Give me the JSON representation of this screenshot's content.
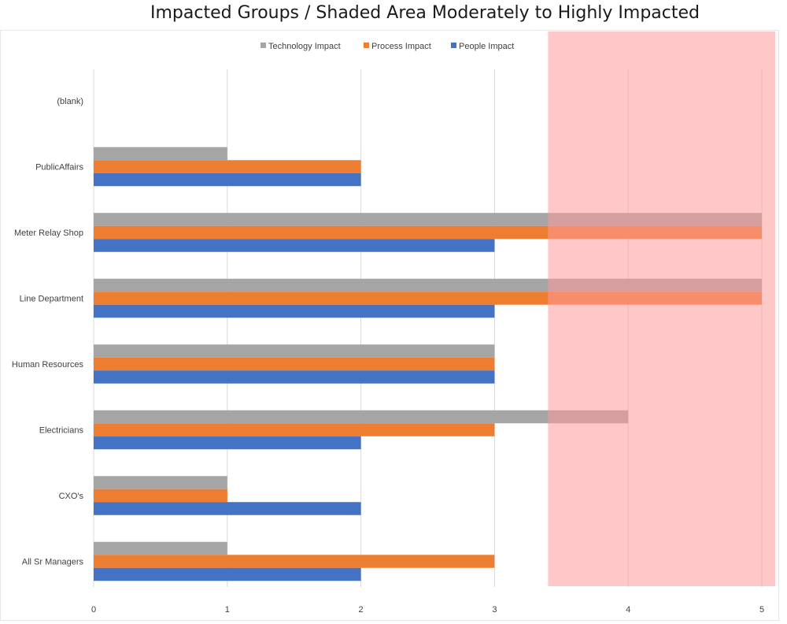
{
  "chart_data": {
    "type": "bar",
    "orientation": "horizontal",
    "title": "Impacted Groups / Shaded Area Moderately to Highly Impacted",
    "categories": [
      "(blank)",
      "PublicAffairs",
      "Meter Relay Shop",
      "Line Department",
      "Human Resources",
      "Electricians",
      "CXO's",
      "All Sr Managers"
    ],
    "series": [
      {
        "name": "Technology Impact",
        "color": "#a5a5a5",
        "values": [
          null,
          1,
          5,
          5,
          3,
          4,
          1,
          1
        ]
      },
      {
        "name": "Process Impact",
        "color": "#ed7d31",
        "values": [
          null,
          2,
          5,
          5,
          3,
          3,
          1,
          3
        ]
      },
      {
        "name": "People Impact",
        "color": "#4472c4",
        "values": [
          null,
          2,
          3,
          3,
          3,
          2,
          2,
          2
        ]
      }
    ],
    "legend_order": [
      "Technology Impact",
      "Process Impact",
      "People Impact"
    ],
    "xlim": [
      0,
      5
    ],
    "x_ticks": [
      "0",
      "1",
      "2",
      "3",
      "4",
      "5"
    ],
    "grid": true,
    "legend_position": "top",
    "shaded_region": {
      "x_start": 3.4,
      "x_end": 5.1,
      "color": "#ff9a9a"
    }
  }
}
